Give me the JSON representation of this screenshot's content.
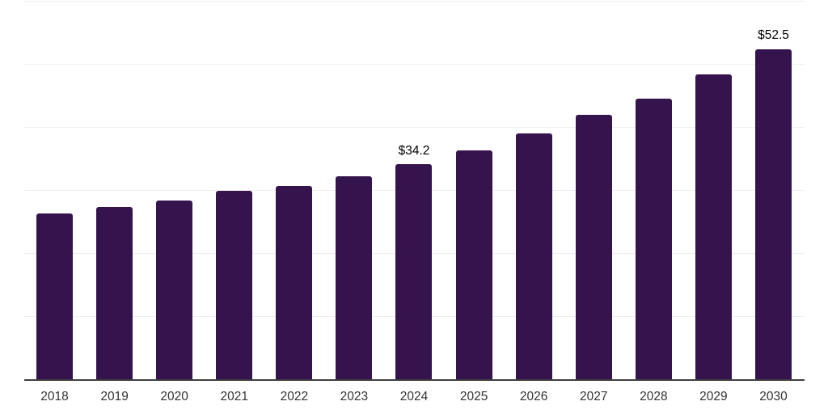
{
  "chart_data": {
    "type": "bar",
    "title": "",
    "xlabel": "",
    "ylabel": "",
    "categories": [
      "2018",
      "2019",
      "2020",
      "2021",
      "2022",
      "2023",
      "2024",
      "2025",
      "2026",
      "2027",
      "2028",
      "2029",
      "2030"
    ],
    "values": [
      26.4,
      27.5,
      28.5,
      30.0,
      30.8,
      32.3,
      34.2,
      36.4,
      39.1,
      42.1,
      44.6,
      48.5,
      52.5
    ],
    "bar_labels": [
      "",
      "",
      "",
      "",
      "",
      "",
      "$34.2",
      "",
      "",
      "",
      "",
      "",
      "$52.5"
    ],
    "ylim": [
      0,
      60
    ],
    "gridline_step": 10,
    "grid": true,
    "legend": false,
    "y_tick_labels_visible": false,
    "colors": {
      "bar": "#35144e",
      "gridline": "#eeeeee",
      "axis_line": "#3f3f3f",
      "tick_label": "#333333",
      "data_label": "#000000",
      "background": "#ffffff"
    }
  }
}
